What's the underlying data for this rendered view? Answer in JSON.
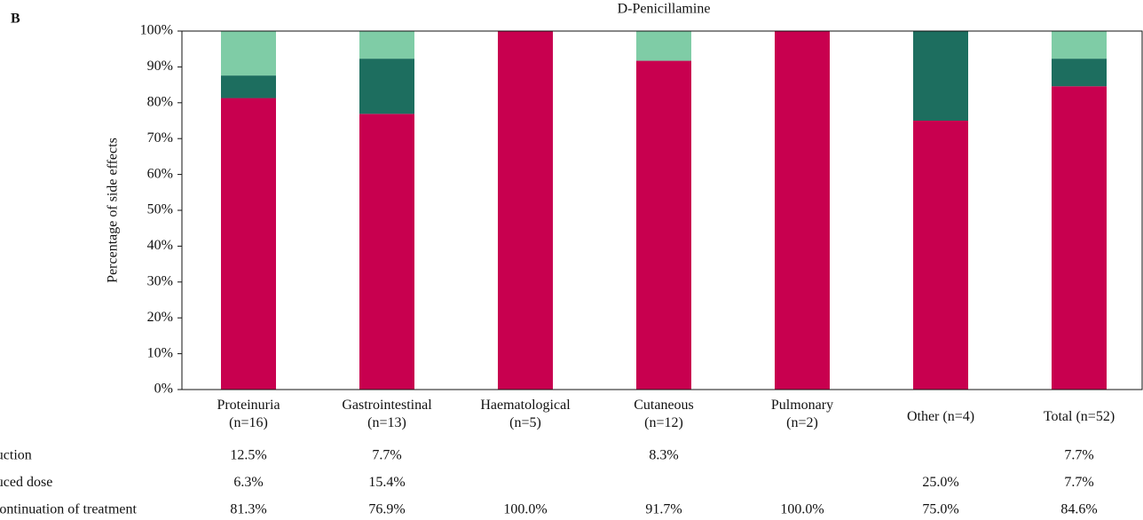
{
  "chart_data": {
    "type": "stacked-bar",
    "panel_label": "B",
    "title": "D-Penicillamine",
    "y_label": "Percentage of side effects",
    "categories": [
      "Proteinuria (n=16)",
      "Gastrointestinal (n=13)",
      "Haematological (n=5)",
      "Cutaneous (n=12)",
      "Pulmonary (n=2)",
      "Other (n=4)",
      "Total (n=52)"
    ],
    "series": [
      {
        "name": "Discontinuation of treatment",
        "color": "#c8004f",
        "values": [
          81.3,
          76.9,
          100.0,
          91.7,
          100.0,
          75.0,
          84.6
        ],
        "value_labels": [
          "81.3%",
          "76.9%",
          "100.0%",
          "91.7%",
          "100.0%",
          "75.0%",
          "84.6%"
        ]
      },
      {
        "name": "Reduced dose",
        "color": "#1d6e5f",
        "values": [
          6.3,
          15.4,
          null,
          null,
          null,
          25.0,
          7.7
        ],
        "value_labels": [
          "6.3%",
          "15.4%",
          null,
          null,
          null,
          "25.0%",
          "7.7%"
        ]
      },
      {
        "name": "Reduction",
        "color": "#7fcca6",
        "values": [
          12.5,
          7.7,
          null,
          8.3,
          null,
          null,
          7.7
        ],
        "value_labels": [
          "12.5%",
          "7.7%",
          null,
          "8.3%",
          null,
          null,
          "7.7%"
        ]
      }
    ],
    "table_order": [
      2,
      1,
      0
    ],
    "ylim": [
      0,
      100
    ],
    "yticks": [
      {
        "value": 0,
        "label": "0%"
      },
      {
        "value": 10,
        "label": "10%"
      },
      {
        "value": 20,
        "label": "20%"
      },
      {
        "value": 30,
        "label": "30%"
      },
      {
        "value": 40,
        "label": "40%"
      },
      {
        "value": 50,
        "label": "50%"
      },
      {
        "value": 60,
        "label": "60%"
      },
      {
        "value": 70,
        "label": "70%"
      },
      {
        "value": 80,
        "label": "80%"
      },
      {
        "value": 90,
        "label": "90%"
      },
      {
        "value": 100,
        "label": "100%"
      }
    ],
    "grid": false
  }
}
